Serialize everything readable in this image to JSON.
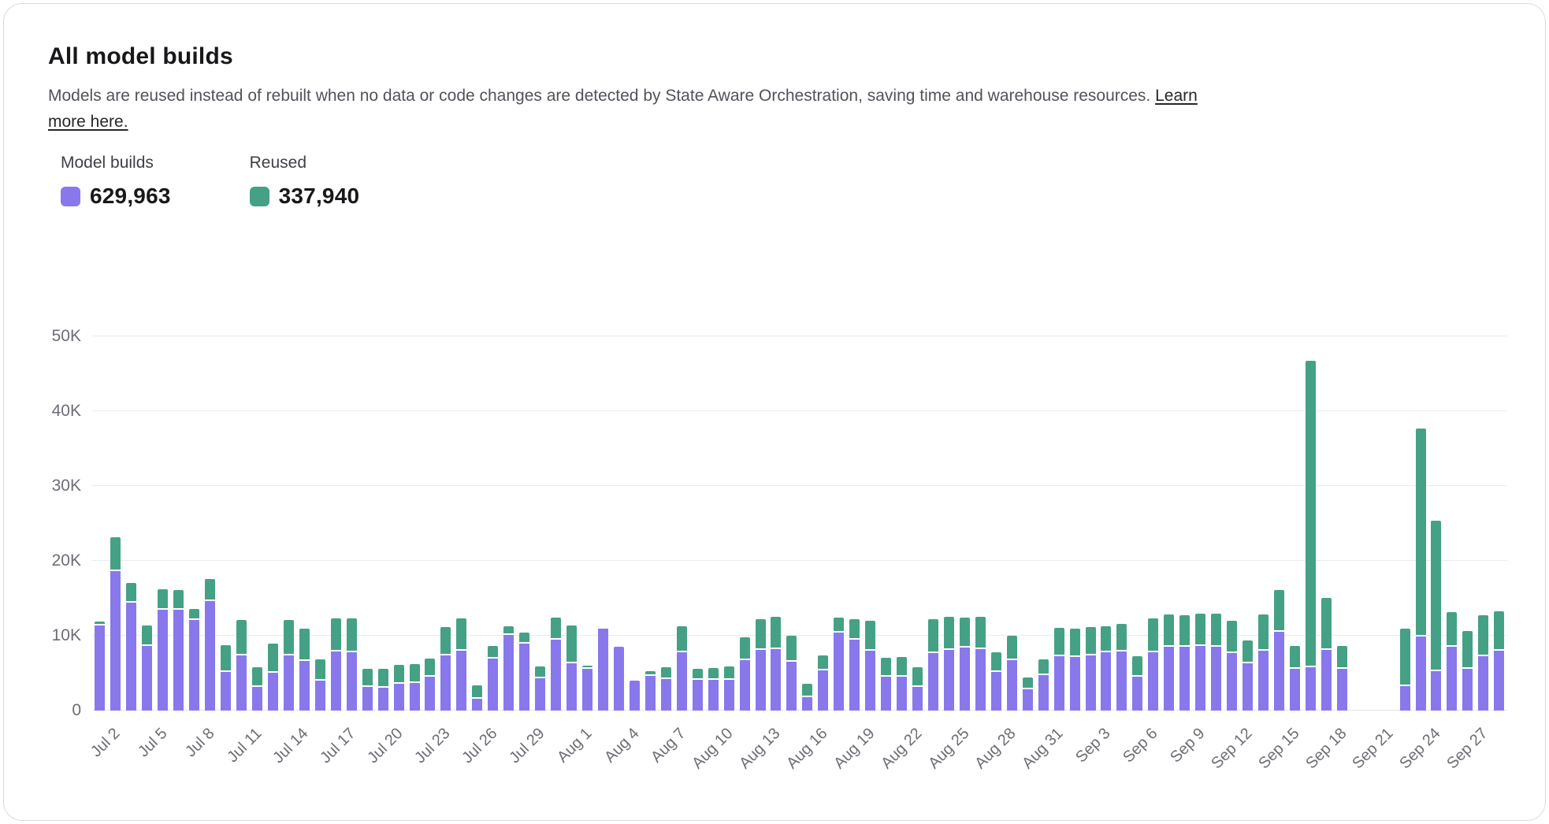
{
  "header": {
    "title": "All model builds",
    "description": "Models are reused instead of rebuilt when no data or code changes are detected by State Aware Orchestration, saving time and warehouse resources. ",
    "link_label": "Learn more here."
  },
  "legend": {
    "items": [
      {
        "label": "Model builds",
        "value": "629,963",
        "color": "#8878ec"
      },
      {
        "label": "Reused",
        "value": "337,940",
        "color": "#45a185"
      }
    ]
  },
  "colors": {
    "builds": "#8878ec",
    "reused": "#45a185",
    "gridline": "#ebebee",
    "axis_text": "#6d6d76"
  },
  "chart_data": {
    "type": "bar",
    "stacked": true,
    "title": "",
    "xlabel": "",
    "ylabel": "",
    "ylim": [
      0,
      50000
    ],
    "y_tick_labels": [
      "0",
      "10K",
      "20K",
      "30K",
      "40K",
      "50K"
    ],
    "x_tick_every": 3,
    "grid": true,
    "legend_position": "top-left",
    "categories": [
      "Jul 2",
      "Jul 3",
      "Jul 4",
      "Jul 5",
      "Jul 6",
      "Jul 7",
      "Jul 8",
      "Jul 9",
      "Jul 10",
      "Jul 11",
      "Jul 12",
      "Jul 13",
      "Jul 14",
      "Jul 15",
      "Jul 16",
      "Jul 17",
      "Jul 18",
      "Jul 19",
      "Jul 20",
      "Jul 21",
      "Jul 22",
      "Jul 23",
      "Jul 24",
      "Jul 25",
      "Jul 26",
      "Jul 27",
      "Jul 28",
      "Jul 29",
      "Jul 30",
      "Jul 31",
      "Aug 1",
      "Aug 2",
      "Aug 3",
      "Aug 4",
      "Aug 5",
      "Aug 6",
      "Aug 7",
      "Aug 8",
      "Aug 9",
      "Aug 10",
      "Aug 11",
      "Aug 12",
      "Aug 13",
      "Aug 14",
      "Aug 15",
      "Aug 16",
      "Aug 17",
      "Aug 18",
      "Aug 19",
      "Aug 20",
      "Aug 21",
      "Aug 22",
      "Aug 23",
      "Aug 24",
      "Aug 25",
      "Aug 26",
      "Aug 27",
      "Aug 28",
      "Aug 29",
      "Aug 30",
      "Aug 31",
      "Sep 1",
      "Sep 2",
      "Sep 3",
      "Sep 4",
      "Sep 5",
      "Sep 6",
      "Sep 7",
      "Sep 8",
      "Sep 9",
      "Sep 10",
      "Sep 11",
      "Sep 12",
      "Sep 13",
      "Sep 14",
      "Sep 15",
      "Sep 16",
      "Sep 17",
      "Sep 18",
      "Sep 19",
      "Sep 20",
      "Sep 21",
      "Sep 22",
      "Sep 23",
      "Sep 24",
      "Sep 25",
      "Sep 26",
      "Sep 27",
      "Sep 28",
      "Sep 29"
    ],
    "series": [
      {
        "name": "Model builds",
        "total": 629963,
        "values": [
          11400,
          18600,
          14400,
          8600,
          13500,
          13500,
          12100,
          14600,
          5200,
          7400,
          3200,
          5100,
          7400,
          6600,
          4000,
          7900,
          7800,
          3200,
          3100,
          3600,
          3700,
          4500,
          7400,
          8000,
          1600,
          6900,
          10100,
          8900,
          4300,
          9500,
          6300,
          5600,
          10900,
          8500,
          4000,
          4600,
          4200,
          7800,
          4100,
          4100,
          4100,
          6700,
          8100,
          8200,
          6500,
          1800,
          5400,
          10400,
          9500,
          8000,
          4500,
          4500,
          3200,
          7700,
          8100,
          8400,
          8200,
          5200,
          6700,
          2800,
          4700,
          7300,
          7200,
          7400,
          7800,
          7900,
          4500,
          7800,
          8500,
          8500,
          8600,
          8500,
          7700,
          6300,
          8000,
          10500,
          5600,
          5800,
          8100,
          5600,
          0,
          0,
          0,
          3300,
          9900,
          5300,
          8500,
          5600,
          7300,
          8000
        ]
      },
      {
        "name": "Reused",
        "total": 337940,
        "values": [
          300,
          4400,
          2400,
          2600,
          2500,
          2400,
          1300,
          2800,
          3300,
          4500,
          2400,
          3600,
          4500,
          4100,
          2600,
          4200,
          4300,
          2200,
          2300,
          2300,
          2300,
          2200,
          3500,
          4100,
          1600,
          1500,
          1000,
          1300,
          1400,
          2700,
          4900,
          200,
          100,
          0,
          0,
          500,
          1400,
          3300,
          1300,
          1400,
          1600,
          2900,
          3900,
          4100,
          3300,
          1600,
          1800,
          1800,
          2500,
          3800,
          2300,
          2500,
          2400,
          4300,
          4200,
          3800,
          4100,
          2400,
          3100,
          1400,
          1900,
          3500,
          3500,
          3500,
          3300,
          3500,
          2600,
          4300,
          4100,
          4000,
          4100,
          4200,
          4100,
          2900,
          4600,
          5400,
          2800,
          40700,
          6700,
          2800,
          0,
          0,
          0,
          7400,
          27600,
          19900,
          4500,
          4800,
          5200,
          5100
        ]
      }
    ]
  }
}
